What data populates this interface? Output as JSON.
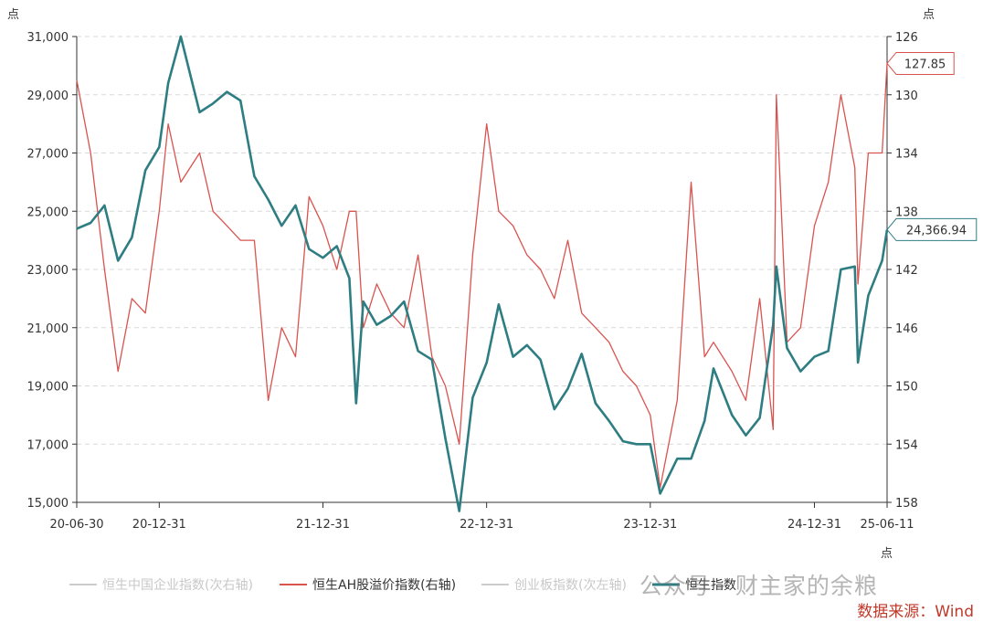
{
  "chart_data": {
    "type": "line",
    "y_left_unit": "点",
    "y_right_unit": "点",
    "x_unit": "点",
    "x_ticks": [
      "20-06-30",
      "20-12-31",
      "21-12-31",
      "22-12-31",
      "23-12-31",
      "24-12-31",
      "25-06-11"
    ],
    "ylim_left": [
      15000,
      31000
    ],
    "yticks_left": [
      "31,000",
      "29,000",
      "27,000",
      "25,000",
      "23,000",
      "21,000",
      "19,000",
      "17,000",
      "15,000"
    ],
    "ylim_right": [
      158,
      126
    ],
    "right_axis_inverted": true,
    "yticks_right": [
      "126",
      "130",
      "134",
      "138",
      "142",
      "146",
      "150",
      "154",
      "158"
    ],
    "grid": "horizontal dashed",
    "legend_position": "bottom",
    "legend": [
      {
        "name": "恒生中国企业指数(次右轴)",
        "active": false,
        "color": "#cccccc"
      },
      {
        "name": "恒生AH股溢价指数(右轴)",
        "active": true,
        "color": "#d9534f"
      },
      {
        "name": "创业板指数(次左轴)",
        "active": false,
        "color": "#cccccc"
      },
      {
        "name": "恒生指数",
        "active": true,
        "color": "#2e7d82"
      }
    ],
    "series": [
      {
        "name": "恒生指数",
        "axis": "left",
        "color": "#2e7d82",
        "x": [
          "20-06-30",
          "20-07-31",
          "20-08-31",
          "20-09-30",
          "20-10-31",
          "20-11-30",
          "20-12-31",
          "21-01-20",
          "21-02-17",
          "21-03-31",
          "21-04-30",
          "21-05-31",
          "21-06-30",
          "21-07-31",
          "21-08-31",
          "21-09-30",
          "21-10-31",
          "21-11-30",
          "21-12-31",
          "22-01-31",
          "22-02-28",
          "22-03-15",
          "22-03-31",
          "22-04-30",
          "22-05-31",
          "22-06-30",
          "22-07-31",
          "22-08-31",
          "22-09-30",
          "22-10-31",
          "22-11-30",
          "22-12-31",
          "23-01-27",
          "23-02-28",
          "23-03-31",
          "23-04-30",
          "23-05-31",
          "23-06-30",
          "23-07-31",
          "23-08-31",
          "23-09-30",
          "23-10-31",
          "23-11-30",
          "23-12-31",
          "24-01-22",
          "24-02-29",
          "24-03-31",
          "24-04-30",
          "24-05-20",
          "24-06-30",
          "24-07-31",
          "24-08-31",
          "24-09-30",
          "24-10-07",
          "24-10-31",
          "24-11-30",
          "24-12-31",
          "25-01-31",
          "25-02-28",
          "25-03-31",
          "25-04-07",
          "25-04-30",
          "25-05-31",
          "25-06-11"
        ],
        "values": [
          24400,
          24600,
          25200,
          23300,
          24100,
          26400,
          27200,
          29400,
          31000,
          28400,
          28700,
          29100,
          28800,
          26200,
          25400,
          24500,
          25200,
          23700,
          23400,
          23800,
          22700,
          18400,
          21900,
          21100,
          21400,
          21900,
          20200,
          19900,
          17200,
          14700,
          18600,
          19800,
          21800,
          20000,
          20400,
          19900,
          18200,
          18900,
          20100,
          18400,
          17800,
          17100,
          17000,
          17000,
          15300,
          16500,
          16500,
          17800,
          19600,
          18000,
          17300,
          17900,
          21100,
          23100,
          20300,
          19500,
          20000,
          20200,
          23000,
          23100,
          19800,
          22100,
          23300,
          24366.94
        ]
      },
      {
        "name": "恒生AH股溢价指数",
        "axis": "right",
        "color": "#d9534f",
        "x": [
          "20-06-30",
          "20-07-31",
          "20-08-31",
          "20-09-30",
          "20-10-31",
          "20-11-30",
          "20-12-31",
          "21-01-20",
          "21-02-17",
          "21-03-31",
          "21-04-30",
          "21-05-31",
          "21-06-30",
          "21-07-31",
          "21-08-31",
          "21-09-30",
          "21-10-31",
          "21-11-30",
          "21-12-31",
          "22-01-31",
          "22-02-28",
          "22-03-15",
          "22-03-31",
          "22-04-30",
          "22-05-31",
          "22-06-30",
          "22-07-31",
          "22-08-31",
          "22-09-30",
          "22-10-31",
          "22-11-30",
          "22-12-31",
          "23-01-27",
          "23-02-28",
          "23-03-31",
          "23-04-30",
          "23-05-31",
          "23-06-30",
          "23-07-31",
          "23-08-31",
          "23-09-30",
          "23-10-31",
          "23-11-30",
          "23-12-31",
          "24-01-22",
          "24-02-29",
          "24-03-31",
          "24-04-30",
          "24-05-20",
          "24-06-30",
          "24-07-31",
          "24-08-31",
          "24-09-30",
          "24-10-07",
          "24-10-31",
          "24-11-30",
          "24-12-31",
          "25-01-31",
          "25-02-28",
          "25-03-31",
          "25-04-07",
          "25-04-30",
          "25-05-31",
          "25-06-11"
        ],
        "values": [
          129,
          134,
          142,
          149,
          144,
          145,
          138,
          132,
          136,
          134,
          138,
          139,
          140,
          140,
          151,
          146,
          148,
          137,
          139,
          142,
          138,
          138,
          146,
          143,
          145,
          146,
          141,
          148,
          150,
          154,
          141,
          132,
          138,
          139,
          141,
          142,
          144,
          140,
          145,
          146,
          147,
          149,
          150,
          152,
          157,
          151,
          136,
          148,
          147,
          149,
          151,
          144,
          153,
          130,
          147,
          146,
          139,
          136,
          130,
          135,
          143,
          134,
          134,
          127.85
        ]
      }
    ],
    "annotations": [
      {
        "series": "恒生AH股溢价指数",
        "label": "127.85",
        "color": "#d9534f"
      },
      {
        "series": "恒生指数",
        "label": "24,366.94",
        "color": "#2e7d82"
      }
    ],
    "source": "数据来源：Wind",
    "watermark": "公众号 · 财主家的余粮"
  }
}
